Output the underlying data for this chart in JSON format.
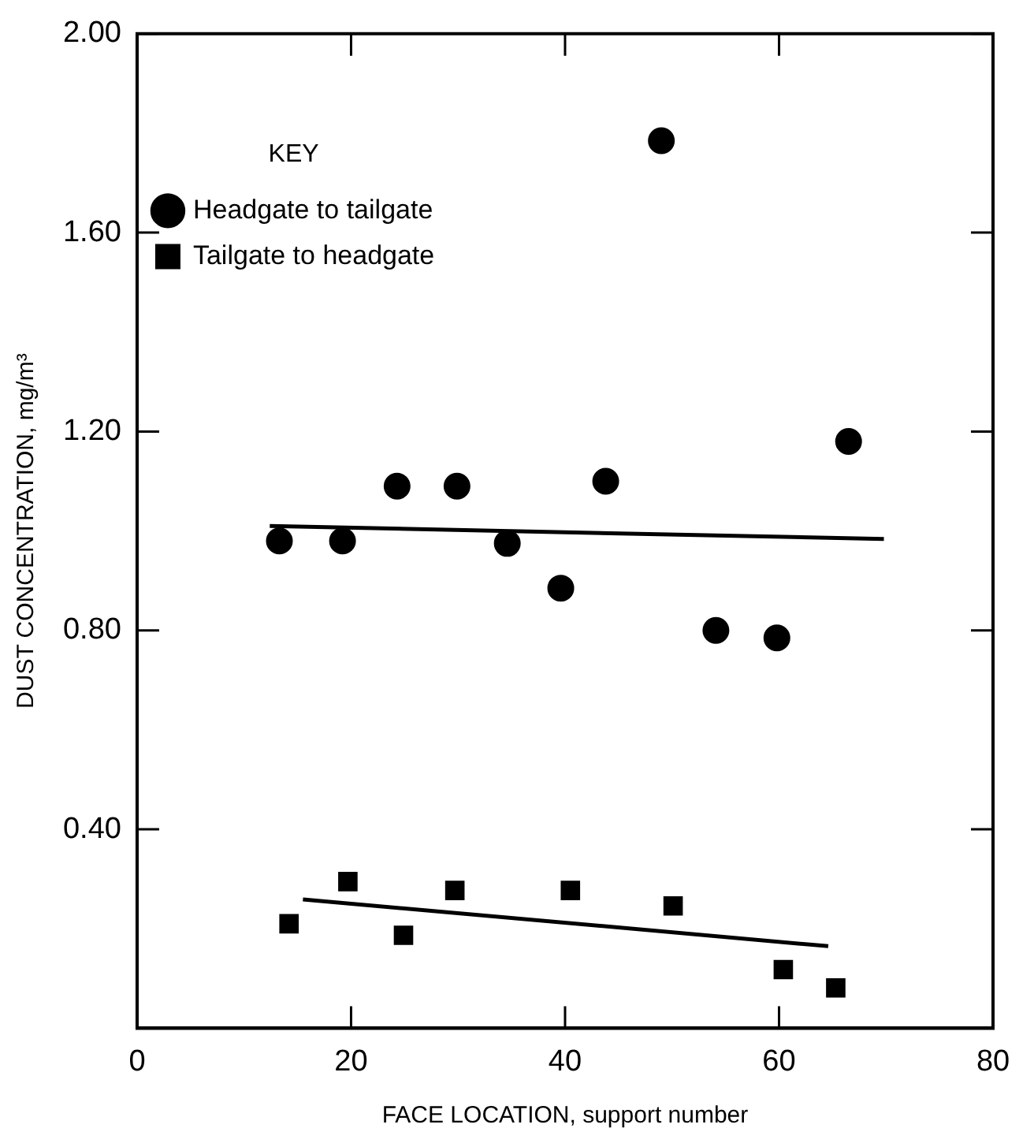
{
  "chart_data": {
    "type": "scatter",
    "xlabel": "FACE LOCATION, support number",
    "ylabel": "DUST CONCENTRATION, mg/m³",
    "legend_title": "KEY",
    "legend": "top left",
    "grid": false,
    "xlim": [
      0,
      80
    ],
    "xticks": [
      0,
      20,
      40,
      60,
      80
    ],
    "ylim": [
      0,
      2
    ],
    "yticks": [
      {
        "value": 0.4,
        "label": "0.40"
      },
      {
        "value": 0.8,
        "label": "0.80"
      },
      {
        "value": 1.2,
        "label": "1.20"
      },
      {
        "value": 1.6,
        "label": "1.60"
      },
      {
        "value": 2,
        "label": "2.00"
      }
    ],
    "series": [
      {
        "name": "Headgate to tailgate",
        "marker": "circle",
        "color": "#000000",
        "x": [
          13.3,
          19.2,
          24.3,
          29.9,
          34.6,
          39.6,
          43.8,
          49,
          54.1,
          59.8,
          66.5
        ],
        "values": [
          0.98,
          0.98,
          1.09,
          1.09,
          0.975,
          0.885,
          1.1,
          1.785,
          0.8,
          0.785,
          1.18
        ]
      },
      {
        "name": "Tailgate to headgate",
        "marker": "square",
        "color": "#000000",
        "x": [
          14.2,
          19.7,
          24.9,
          29.7,
          40.5,
          50.1,
          60.4,
          65.3
        ],
        "values": [
          0.21,
          0.295,
          0.187,
          0.277,
          0.277,
          0.246,
          0.118,
          0.081
        ]
      },
      {
        "type": "line",
        "marker": "none",
        "color": "#000000",
        "x": [
          12.4,
          69.8
        ],
        "values": [
          1.01,
          0.984
        ]
      },
      {
        "type": "line",
        "marker": "none",
        "color": "#000000",
        "x": [
          15.5,
          64.6
        ],
        "values": [
          0.259,
          0.165
        ]
      }
    ]
  }
}
